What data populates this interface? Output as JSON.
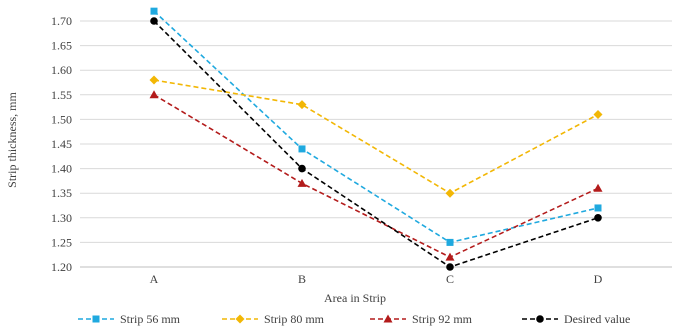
{
  "chart_data": {
    "type": "line",
    "categories": [
      "A",
      "B",
      "C",
      "D"
    ],
    "xlabel": "Area in Strip",
    "ylabel": "Strip thickness, mm",
    "ylim": [
      1.2,
      1.7
    ],
    "yticks": [
      "1.20",
      "1.25",
      "1.30",
      "1.35",
      "1.40",
      "1.45",
      "1.50",
      "1.55",
      "1.60",
      "1.65",
      "1.70"
    ],
    "grid": true,
    "legend_position": "bottom",
    "series": [
      {
        "name": "Strip 56 mm",
        "values": [
          1.72,
          1.44,
          1.25,
          1.32
        ],
        "color": "#1fa9df",
        "marker": "square",
        "dash": "dashed"
      },
      {
        "name": "Strip 80 mm",
        "values": [
          1.58,
          1.53,
          1.35,
          1.51
        ],
        "color": "#f2b705",
        "marker": "diamond",
        "dash": "dashed"
      },
      {
        "name": "Strip 92 mm",
        "values": [
          1.55,
          1.37,
          1.22,
          1.36
        ],
        "color": "#b31b1b",
        "marker": "triangle",
        "dash": "dashed"
      },
      {
        "name": "Desired value",
        "values": [
          1.7,
          1.4,
          1.2,
          1.3
        ],
        "color": "#000000",
        "marker": "circle",
        "dash": "dashed"
      }
    ]
  }
}
